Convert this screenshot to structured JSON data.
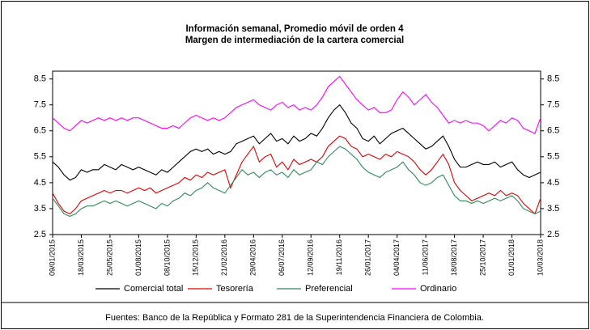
{
  "chart_data": {
    "type": "line",
    "title": "Información semanal, Promedio móvil de orden 4",
    "subtitle": "Margen de intermediación de la cartera comercial",
    "note": "Fuentes: Banco de la República y Formato 281 de la Superintendencia Financiera de Colombia.",
    "categories": [
      "09/01/2015",
      null,
      null,
      null,
      null,
      "18/03/2015",
      null,
      null,
      null,
      null,
      "25/05/2015",
      null,
      null,
      null,
      null,
      "01/08/2015",
      null,
      null,
      null,
      null,
      "08/10/2015",
      null,
      null,
      null,
      null,
      "15/12/2015",
      null,
      null,
      null,
      null,
      "21/02/2016",
      null,
      null,
      null,
      null,
      "29/04/2016",
      null,
      null,
      null,
      null,
      "06/07/2016",
      null,
      null,
      null,
      null,
      "12/09/2016",
      null,
      null,
      null,
      null,
      "19/11/2016",
      null,
      null,
      null,
      null,
      "26/01/2017",
      null,
      null,
      null,
      null,
      "04/04/2017",
      null,
      null,
      null,
      null,
      "11/06/2017",
      null,
      null,
      null,
      null,
      "18/08/2017",
      null,
      null,
      null,
      null,
      "25/10/2017",
      null,
      null,
      null,
      null,
      "01/01/2018",
      null,
      null,
      null,
      null,
      "10/03/2018"
    ],
    "series": [
      {
        "name": "Comercial total",
        "color": "#000000",
        "values": [
          5.3,
          5.1,
          4.8,
          4.6,
          4.7,
          5.0,
          4.9,
          5.0,
          5.0,
          5.2,
          5.1,
          5.0,
          5.2,
          5.1,
          5.0,
          5.1,
          5.0,
          4.9,
          4.8,
          5.0,
          4.9,
          5.1,
          5.3,
          5.5,
          5.7,
          5.8,
          5.7,
          5.8,
          5.6,
          5.7,
          5.6,
          5.7,
          6.0,
          6.1,
          6.2,
          6.3,
          6.0,
          6.2,
          6.4,
          6.1,
          6.2,
          6.0,
          6.3,
          6.1,
          6.2,
          6.4,
          6.3,
          6.6,
          7.0,
          7.3,
          7.5,
          7.2,
          6.8,
          6.6,
          6.2,
          6.1,
          6.3,
          6.0,
          6.2,
          6.4,
          6.5,
          6.6,
          6.4,
          6.2,
          6.0,
          5.8,
          5.9,
          6.1,
          6.3,
          5.9,
          5.4,
          5.1,
          5.1,
          5.2,
          5.3,
          5.2,
          5.2,
          5.3,
          5.1,
          5.2,
          5.3,
          5.0,
          4.8,
          4.7,
          4.8,
          4.9
        ]
      },
      {
        "name": "Tesorería",
        "color": "#e00000",
        "values": [
          4.1,
          3.7,
          3.4,
          3.3,
          3.5,
          3.8,
          3.9,
          4.0,
          4.1,
          4.2,
          4.1,
          4.2,
          4.2,
          4.1,
          4.2,
          4.3,
          4.2,
          4.3,
          4.1,
          4.2,
          4.3,
          4.4,
          4.5,
          4.7,
          4.6,
          4.8,
          4.7,
          4.9,
          4.8,
          4.9,
          5.0,
          4.3,
          4.8,
          5.3,
          5.6,
          5.9,
          5.3,
          5.5,
          5.6,
          5.1,
          5.3,
          5.0,
          5.4,
          5.2,
          5.3,
          5.4,
          5.3,
          5.5,
          5.9,
          6.1,
          6.3,
          6.2,
          5.9,
          5.8,
          5.5,
          5.6,
          5.5,
          5.4,
          5.6,
          5.5,
          5.7,
          5.6,
          5.5,
          5.3,
          5.0,
          4.8,
          5.0,
          5.3,
          5.6,
          5.2,
          4.5,
          4.2,
          4.0,
          3.8,
          3.9,
          4.0,
          4.1,
          4.0,
          4.2,
          4.0,
          4.1,
          4.0,
          3.7,
          3.5,
          3.3,
          3.9
        ]
      },
      {
        "name": "Preferencial",
        "color": "#2e8b57",
        "values": [
          3.9,
          3.6,
          3.3,
          3.2,
          3.3,
          3.5,
          3.6,
          3.6,
          3.7,
          3.8,
          3.7,
          3.8,
          3.7,
          3.6,
          3.7,
          3.8,
          3.7,
          3.6,
          3.5,
          3.7,
          3.6,
          3.8,
          3.9,
          4.1,
          4.0,
          4.2,
          4.3,
          4.5,
          4.3,
          4.2,
          4.1,
          4.4,
          4.7,
          5.0,
          4.8,
          4.9,
          4.7,
          4.9,
          5.0,
          4.8,
          4.9,
          4.7,
          5.0,
          4.8,
          4.9,
          5.0,
          5.3,
          5.2,
          5.5,
          5.7,
          5.9,
          5.8,
          5.6,
          5.4,
          5.1,
          4.9,
          4.8,
          4.7,
          4.9,
          5.0,
          5.1,
          5.3,
          5.0,
          4.8,
          4.5,
          4.4,
          4.5,
          4.7,
          4.8,
          4.4,
          4.0,
          3.8,
          3.8,
          3.7,
          3.8,
          3.7,
          3.8,
          3.9,
          3.8,
          3.9,
          4.0,
          3.8,
          3.5,
          3.4,
          3.3,
          3.4
        ]
      },
      {
        "name": "Ordinario",
        "color": "#ff00ff",
        "values": [
          7.0,
          6.8,
          6.6,
          6.5,
          6.7,
          6.9,
          6.8,
          6.9,
          7.0,
          6.9,
          7.0,
          6.9,
          7.0,
          6.9,
          7.0,
          7.0,
          6.9,
          6.8,
          6.7,
          6.6,
          6.6,
          6.7,
          6.6,
          6.8,
          7.0,
          7.1,
          7.0,
          6.9,
          7.0,
          6.9,
          7.0,
          7.2,
          7.4,
          7.5,
          7.6,
          7.7,
          7.5,
          7.4,
          7.3,
          7.5,
          7.6,
          7.4,
          7.5,
          7.3,
          7.4,
          7.3,
          7.5,
          7.8,
          8.2,
          8.4,
          8.6,
          8.3,
          8.0,
          7.7,
          7.5,
          7.3,
          7.4,
          7.2,
          7.2,
          7.3,
          7.7,
          8.0,
          7.8,
          7.5,
          7.7,
          7.9,
          7.6,
          7.4,
          7.1,
          6.8,
          6.9,
          6.8,
          6.9,
          6.8,
          6.8,
          6.7,
          6.5,
          6.7,
          6.9,
          6.8,
          7.0,
          6.9,
          6.6,
          6.5,
          6.4,
          7.0
        ]
      }
    ],
    "ylim": [
      2.5,
      8.8
    ],
    "yticks": [
      2.5,
      3.5,
      4.5,
      5.5,
      6.5,
      7.5,
      8.5
    ],
    "y2lim": [
      2.5,
      8.8
    ],
    "y2ticks": [
      2.5,
      3.5,
      4.5,
      5.5,
      6.5,
      7.5,
      8.5
    ],
    "legend": "bottom",
    "grid": false
  }
}
